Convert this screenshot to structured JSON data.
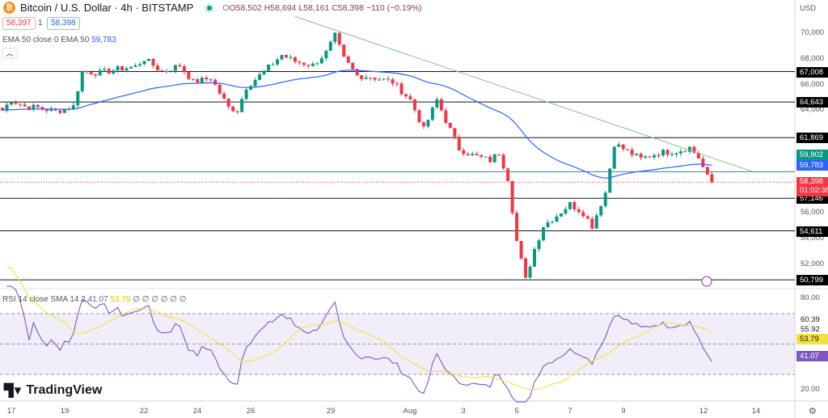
{
  "header": {
    "symbol_icon": "bitcoin-icon",
    "title": "Bitcoin / U.S. Dollar · 4h · BITSTAMP",
    "market_status": "open",
    "open": "O58,502",
    "high": "H58,694",
    "low": "L58,161",
    "close": "C58,398",
    "change": "−110 (−0.19%)"
  },
  "bid": "58,397",
  "spread": "1",
  "ask": "58,398",
  "ema_legend": {
    "label": "EMA 50 close 0 EMA 50",
    "value": "59,783"
  },
  "rsi_legend": {
    "label": "RSI 14 close SMA 14 2",
    "rsi": "41.07",
    "sma": "53.79",
    "extra": "∅ ∅ ∅ ∅ ∅ ∅"
  },
  "brand": "TradingView",
  "price_axis": {
    "currency": "USD",
    "ticks": [
      "70,000",
      "68,000",
      "66,000",
      "64,000",
      "56,000",
      "54,000",
      "52,000"
    ]
  },
  "levels": [
    "67,008",
    "64,643",
    "61,869",
    "57,146",
    "54,611",
    "50,799"
  ],
  "tags": {
    "sma_price": "59,902",
    "ema": "59,783",
    "last": "58,398",
    "countdown": "01:02:38"
  },
  "rsi_axis": {
    "ticks": [
      "80.00",
      "20.00"
    ],
    "v1": "60.39",
    "v2": "55.92",
    "sma": "53.79",
    "rsi": "41.07"
  },
  "time_axis": [
    "17",
    "19",
    "22",
    "24",
    "26",
    "29",
    "Aug",
    "3",
    "5",
    "7",
    "9",
    "12",
    "14"
  ],
  "colors": {
    "up": "#089981",
    "down": "#f23645",
    "ema": "#2962ff",
    "trend": "#81c784",
    "rsi": "#7e57c2",
    "rsi_sma": "#f5e13a",
    "sma_line": "#26a69a"
  },
  "chart_data": {
    "type": "candlestick",
    "interval": "4h",
    "ema_period": 50,
    "rsi_period": 14,
    "rsi_sma": 14,
    "price_path": [
      [
        "Jul 16 16:00",
        64000
      ],
      [
        "Jul 17 00:00",
        64800
      ],
      [
        "Jul 17 12:00",
        64300
      ],
      [
        "Jul 18 00:00",
        64200
      ],
      [
        "Jul 18 16:00",
        63900
      ],
      [
        "Jul 19 08:00",
        64300
      ],
      [
        "Jul 19 16:00",
        67000
      ],
      [
        "Jul 20 08:00",
        66900
      ],
      [
        "Jul 21 00:00",
        67200
      ],
      [
        "Jul 21 16:00",
        67400
      ],
      [
        "Jul 22 00:00",
        68000
      ],
      [
        "Jul 22 16:00",
        67000
      ],
      [
        "Jul 23 08:00",
        67500
      ],
      [
        "Jul 23 20:00",
        66200
      ],
      [
        "Jul 24 12:00",
        66500
      ],
      [
        "Jul 25 04:00",
        64200
      ],
      [
        "Jul 25 12:00",
        64000
      ],
      [
        "Jul 25 20:00",
        65800
      ],
      [
        "Jul 26 12:00",
        67000
      ],
      [
        "Jul 27 04:00",
        68300
      ],
      [
        "Jul 27 16:00",
        67800
      ],
      [
        "Jul 28 08:00",
        67500
      ],
      [
        "Jul 28 20:00",
        68500
      ],
      [
        "Jul 29 04:00",
        69800
      ],
      [
        "Jul 29 12:00",
        68000
      ],
      [
        "Jul 30 00:00",
        66700
      ],
      [
        "Jul 30 12:00",
        66600
      ],
      [
        "Jul 31 08:00",
        66200
      ],
      [
        "Aug 1 00:00",
        64800
      ],
      [
        "Aug 1 12:00",
        62500
      ],
      [
        "Aug 2 00:00",
        64800
      ],
      [
        "Aug 2 08:00",
        63200
      ],
      [
        "Aug 2 20:00",
        61000
      ],
      [
        "Aug 3 08:00",
        60500
      ],
      [
        "Aug 4 00:00",
        60100
      ],
      [
        "Aug 4 08:00",
        60700
      ],
      [
        "Aug 4 16:00",
        58700
      ],
      [
        "Aug 5 00:00",
        53800
      ],
      [
        "Aug 5 08:00",
        50800
      ],
      [
        "Aug 5 16:00",
        53200
      ],
      [
        "Aug 6 00:00",
        55000
      ],
      [
        "Aug 6 12:00",
        55800
      ],
      [
        "Aug 7 00:00",
        56700
      ],
      [
        "Aug 7 12:00",
        56000
      ],
      [
        "Aug 7 20:00",
        55000
      ],
      [
        "Aug 8 08:00",
        57600
      ],
      [
        "Aug 8 16:00",
        61400
      ],
      [
        "Aug 9 00:00",
        61000
      ],
      [
        "Aug 9 16:00",
        60200
      ],
      [
        "Aug 10 08:00",
        60700
      ],
      [
        "Aug 11 00:00",
        60800
      ],
      [
        "Aug 11 12:00",
        61100
      ],
      [
        "Aug 11 20:00",
        60300
      ],
      [
        "Aug 12 04:00",
        58800
      ],
      [
        "Aug 12 08:00",
        58398
      ]
    ],
    "trendline": [
      [
        "Jul 27 16:00",
        71300
      ],
      [
        "Aug 13 20:00",
        59250
      ]
    ],
    "horizontal_levels": [
      67008,
      64643,
      61869,
      57146,
      54611,
      50799
    ],
    "sma_level": 59902,
    "last_price": 58398,
    "ylim": [
      49500,
      72000
    ],
    "rsi_levels": [
      70,
      50,
      30
    ],
    "rsi_ylim": [
      12,
      88
    ]
  }
}
